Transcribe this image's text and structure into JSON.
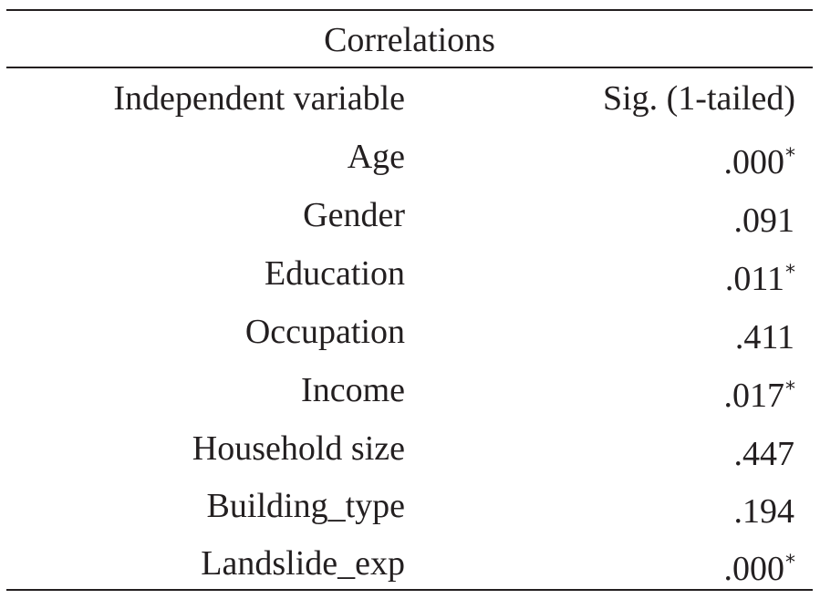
{
  "table": {
    "caption": "Correlations",
    "headers": {
      "variable": "Independent variable",
      "significance": "Sig. (1-tailed)"
    },
    "rows": [
      {
        "variable": "Age",
        "sig": ".000",
        "marker": "*"
      },
      {
        "variable": "Gender",
        "sig": ".091",
        "marker": ""
      },
      {
        "variable": "Education",
        "sig": ".011",
        "marker": "*"
      },
      {
        "variable": "Occupation",
        "sig": ".411",
        "marker": ""
      },
      {
        "variable": "Income",
        "sig": ".017",
        "marker": "*"
      },
      {
        "variable": "Household size",
        "sig": ".447",
        "marker": ""
      },
      {
        "variable": "Building_type",
        "sig": ".194",
        "marker": ""
      },
      {
        "variable": "Landslide_exp",
        "sig": ".000",
        "marker": "*"
      }
    ]
  }
}
